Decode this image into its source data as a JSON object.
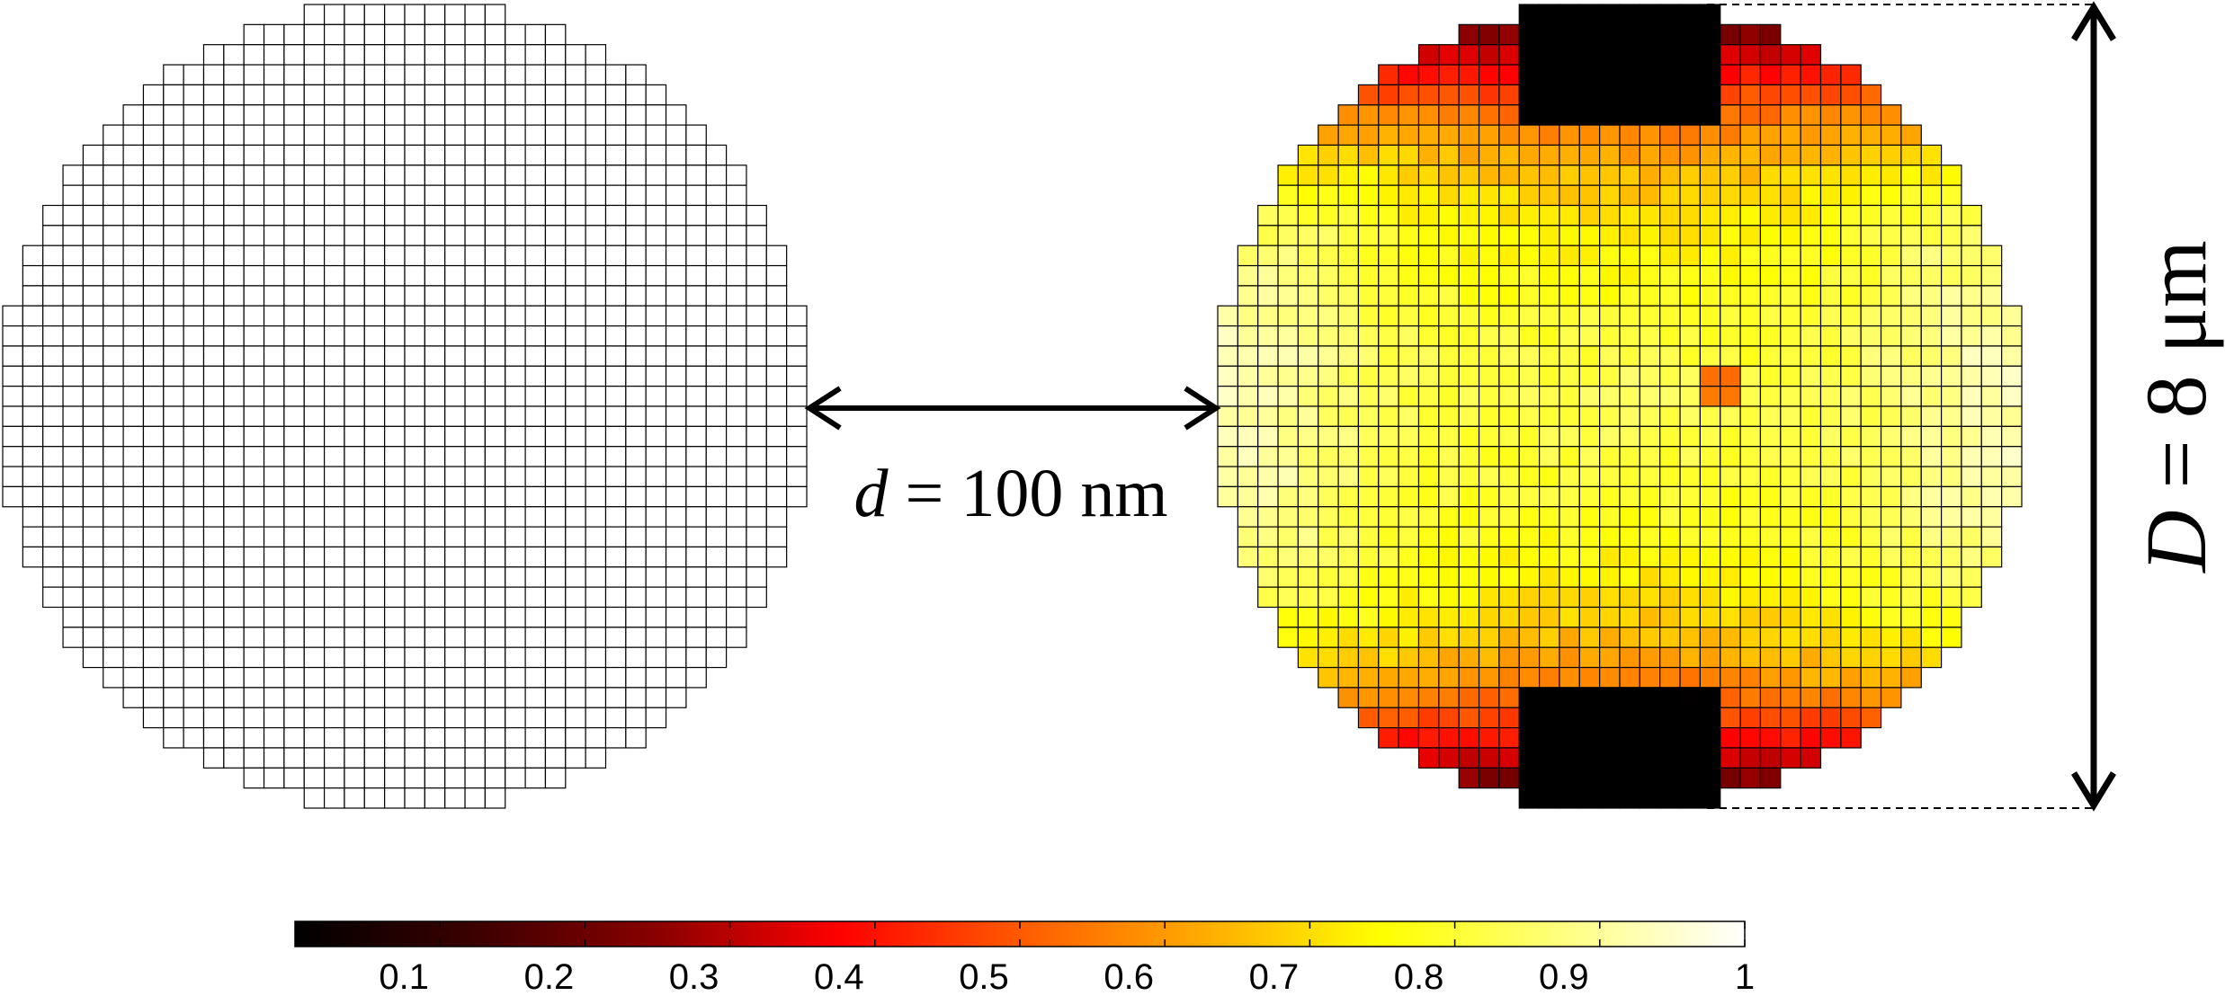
{
  "labels": {
    "gap_var": "d",
    "gap_rest": " = 100 nm",
    "diam_var": "D",
    "diam_rest": " = 8 μm"
  },
  "colorbar": {
    "colormap": "hot",
    "range": [
      0,
      1
    ],
    "ticks": [
      "0.1",
      "0.2",
      "0.3",
      "0.4",
      "0.5",
      "0.6",
      "0.7",
      "0.8",
      "0.9",
      "1"
    ]
  },
  "colors": {
    "left_disk_fill": "#ffffff",
    "grid_line": "#000000"
  }
}
